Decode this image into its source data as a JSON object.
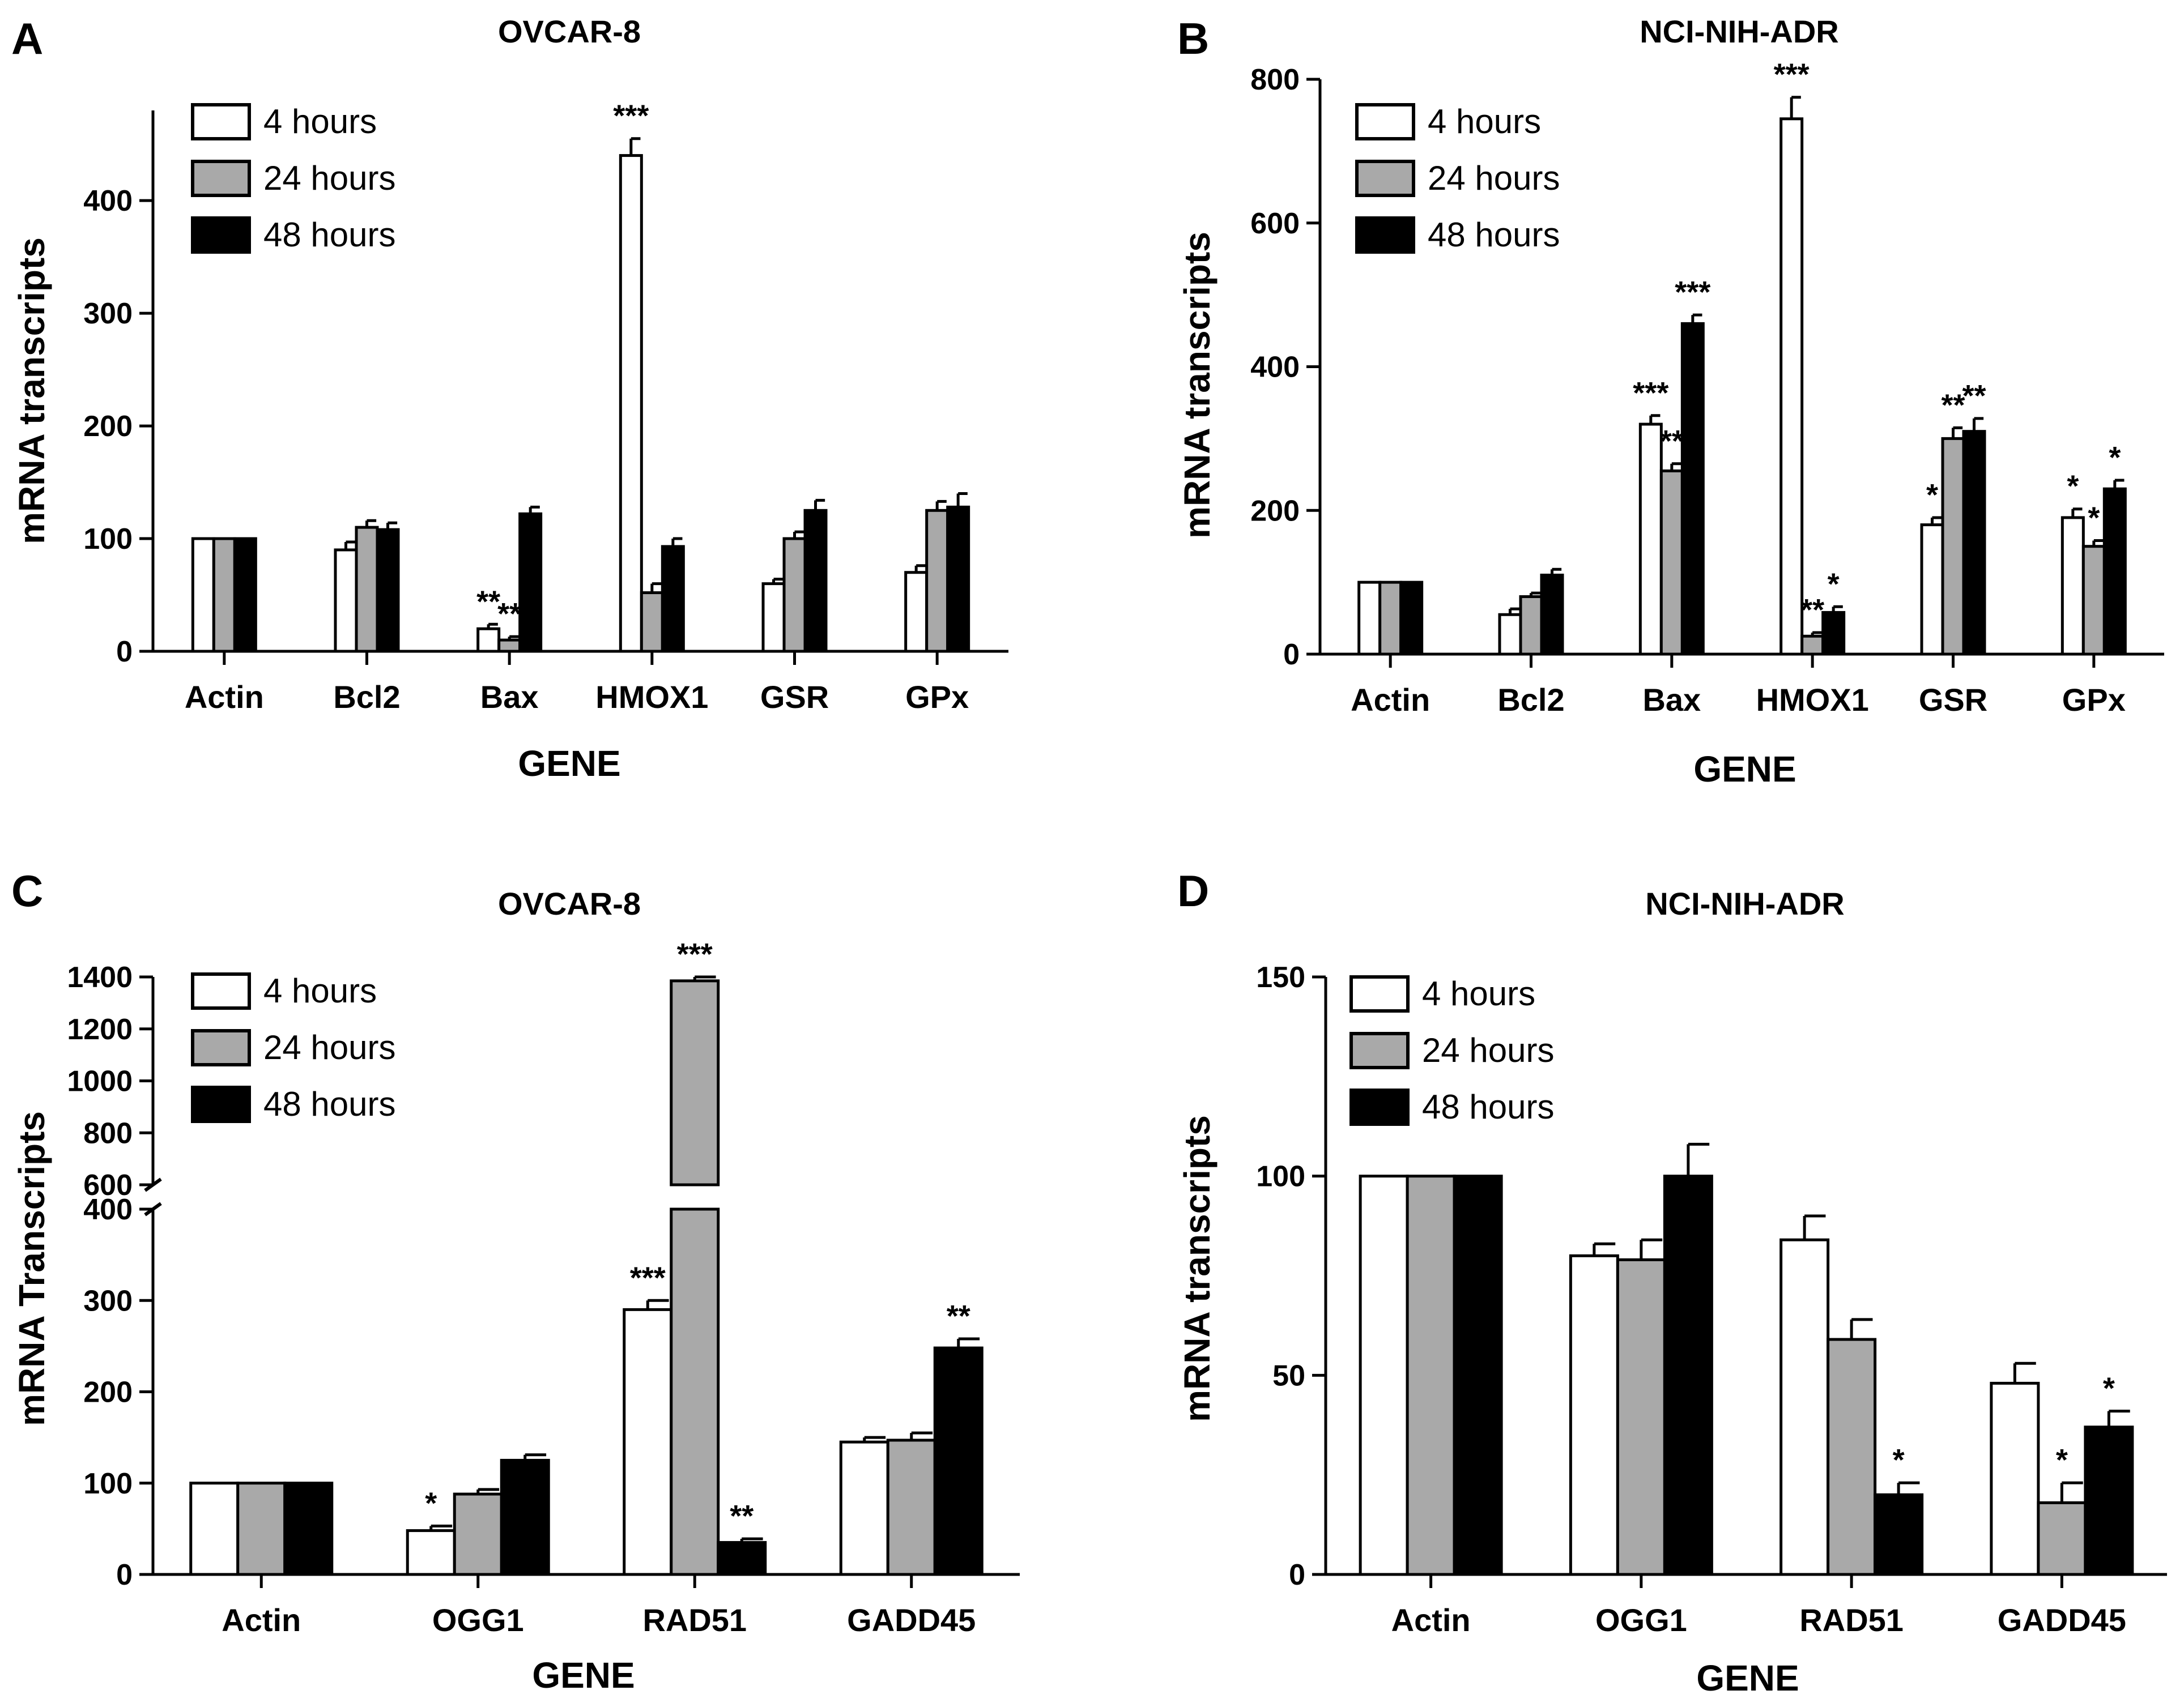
{
  "colors": {
    "4h": "#ffffff",
    "24h": "#a9a9a9",
    "48h": "#000000",
    "stroke": "#000000"
  },
  "chart_data": [
    {
      "panel": "A",
      "type": "bar",
      "title": "OVCAR-8",
      "xlabel": "GENE",
      "ylabel": "mRNA transcripts",
      "categories": [
        "Actin",
        "Bcl2",
        "Bax",
        "HMOX1",
        "GSR",
        "GPx"
      ],
      "ylim": [
        0,
        480
      ],
      "yticks": [
        0,
        100,
        200,
        300,
        400
      ],
      "ytick_labels": [
        "0",
        "100",
        "200",
        "300",
        "400"
      ],
      "legend": [
        "4 hours",
        "24 hours",
        "48 hours"
      ],
      "series": [
        {
          "name": "4 hours",
          "values": [
            100,
            90,
            20,
            440,
            60,
            70
          ],
          "errors": [
            0,
            7,
            4,
            15,
            4,
            6
          ],
          "sig": [
            "",
            "",
            "**",
            "***",
            "",
            ""
          ]
        },
        {
          "name": "24 hours",
          "values": [
            100,
            110,
            10,
            52,
            100,
            125
          ],
          "errors": [
            0,
            6,
            3,
            8,
            6,
            8
          ],
          "sig": [
            "",
            "",
            "**",
            "",
            "",
            ""
          ]
        },
        {
          "name": "48 hours",
          "values": [
            100,
            108,
            122,
            93,
            125,
            128
          ],
          "errors": [
            0,
            6,
            6,
            7,
            9,
            12
          ],
          "sig": [
            "",
            "",
            "",
            "",
            "",
            ""
          ]
        }
      ]
    },
    {
      "panel": "B",
      "type": "bar",
      "title": "NCI-NIH-ADR",
      "xlabel": "GENE",
      "ylabel": "mRNA transcripts",
      "categories": [
        "Actin",
        "Bcl2",
        "Bax",
        "HMOX1",
        "GSR",
        "GPx"
      ],
      "ylim": [
        0,
        800
      ],
      "yticks": [
        0,
        200,
        400,
        600,
        800
      ],
      "ytick_labels": [
        "0",
        "200",
        "400",
        "600",
        "800"
      ],
      "legend": [
        "4 hours",
        "24 hours",
        "48 hours"
      ],
      "series": [
        {
          "name": "4 hours",
          "values": [
            100,
            55,
            320,
            745,
            180,
            190
          ],
          "errors": [
            0,
            8,
            12,
            30,
            10,
            12
          ],
          "sig": [
            "",
            "",
            "***",
            "***",
            "*",
            "*"
          ]
        },
        {
          "name": "24 hours",
          "values": [
            100,
            80,
            255,
            25,
            300,
            150
          ],
          "errors": [
            0,
            5,
            10,
            5,
            15,
            8
          ],
          "sig": [
            "",
            "",
            "**",
            "**",
            "**",
            "*"
          ]
        },
        {
          "name": "48 hours",
          "values": [
            100,
            110,
            460,
            58,
            310,
            230
          ],
          "errors": [
            0,
            8,
            12,
            8,
            18,
            12
          ],
          "sig": [
            "",
            "",
            "***",
            "*",
            "**",
            "*"
          ]
        }
      ]
    },
    {
      "panel": "C",
      "type": "bar",
      "title": "OVCAR-8",
      "xlabel": "GENE",
      "ylabel": "mRNA Transcripts",
      "categories": [
        "Actin",
        "OGG1",
        "RAD51",
        "GADD45"
      ],
      "axis_break": {
        "lower": [
          0,
          400
        ],
        "upper": [
          600,
          1400
        ]
      },
      "yticks_lower": [
        0,
        100,
        200,
        300,
        400
      ],
      "ytick_labels_lower": [
        "0",
        "100",
        "200",
        "300",
        "400"
      ],
      "yticks_upper": [
        600,
        800,
        1000,
        1200,
        1400
      ],
      "ytick_labels_upper": [
        "600",
        "800",
        "1000",
        "1200",
        "1400"
      ],
      "legend": [
        "4 hours",
        "24 hours",
        "48 hours"
      ],
      "series": [
        {
          "name": "4 hours",
          "values": [
            100,
            48,
            290,
            145
          ],
          "errors": [
            0,
            5,
            10,
            5
          ],
          "sig": [
            "",
            "*",
            "***",
            ""
          ]
        },
        {
          "name": "24 hours",
          "values": [
            100,
            88,
            1385,
            147
          ],
          "errors": [
            0,
            5,
            40,
            8
          ],
          "sig": [
            "",
            "",
            "***",
            ""
          ]
        },
        {
          "name": "48 hours",
          "values": [
            100,
            125,
            35,
            248
          ],
          "errors": [
            0,
            6,
            4,
            10
          ],
          "sig": [
            "",
            "",
            "**",
            "**"
          ]
        }
      ]
    },
    {
      "panel": "D",
      "type": "bar",
      "title": "NCI-NIH-ADR",
      "xlabel": "GENE",
      "ylabel": "mRNA transcripts",
      "categories": [
        "Actin",
        "OGG1",
        "RAD51",
        "GADD45"
      ],
      "ylim": [
        0,
        150
      ],
      "yticks": [
        0,
        50,
        100,
        150
      ],
      "ytick_labels": [
        "0",
        "50",
        "100",
        "150"
      ],
      "legend": [
        "4 hours",
        "24 hours",
        "48 hours"
      ],
      "series": [
        {
          "name": "4 hours",
          "values": [
            100,
            80,
            84,
            48
          ],
          "errors": [
            0,
            3,
            6,
            5
          ],
          "sig": [
            "",
            "",
            "",
            ""
          ]
        },
        {
          "name": "24 hours",
          "values": [
            100,
            79,
            59,
            18
          ],
          "errors": [
            0,
            5,
            5,
            5
          ],
          "sig": [
            "",
            "",
            "",
            "*"
          ]
        },
        {
          "name": "48 hours",
          "values": [
            100,
            100,
            20,
            37
          ],
          "errors": [
            0,
            8,
            3,
            4
          ],
          "sig": [
            "",
            "",
            "*",
            "*"
          ]
        }
      ]
    }
  ]
}
